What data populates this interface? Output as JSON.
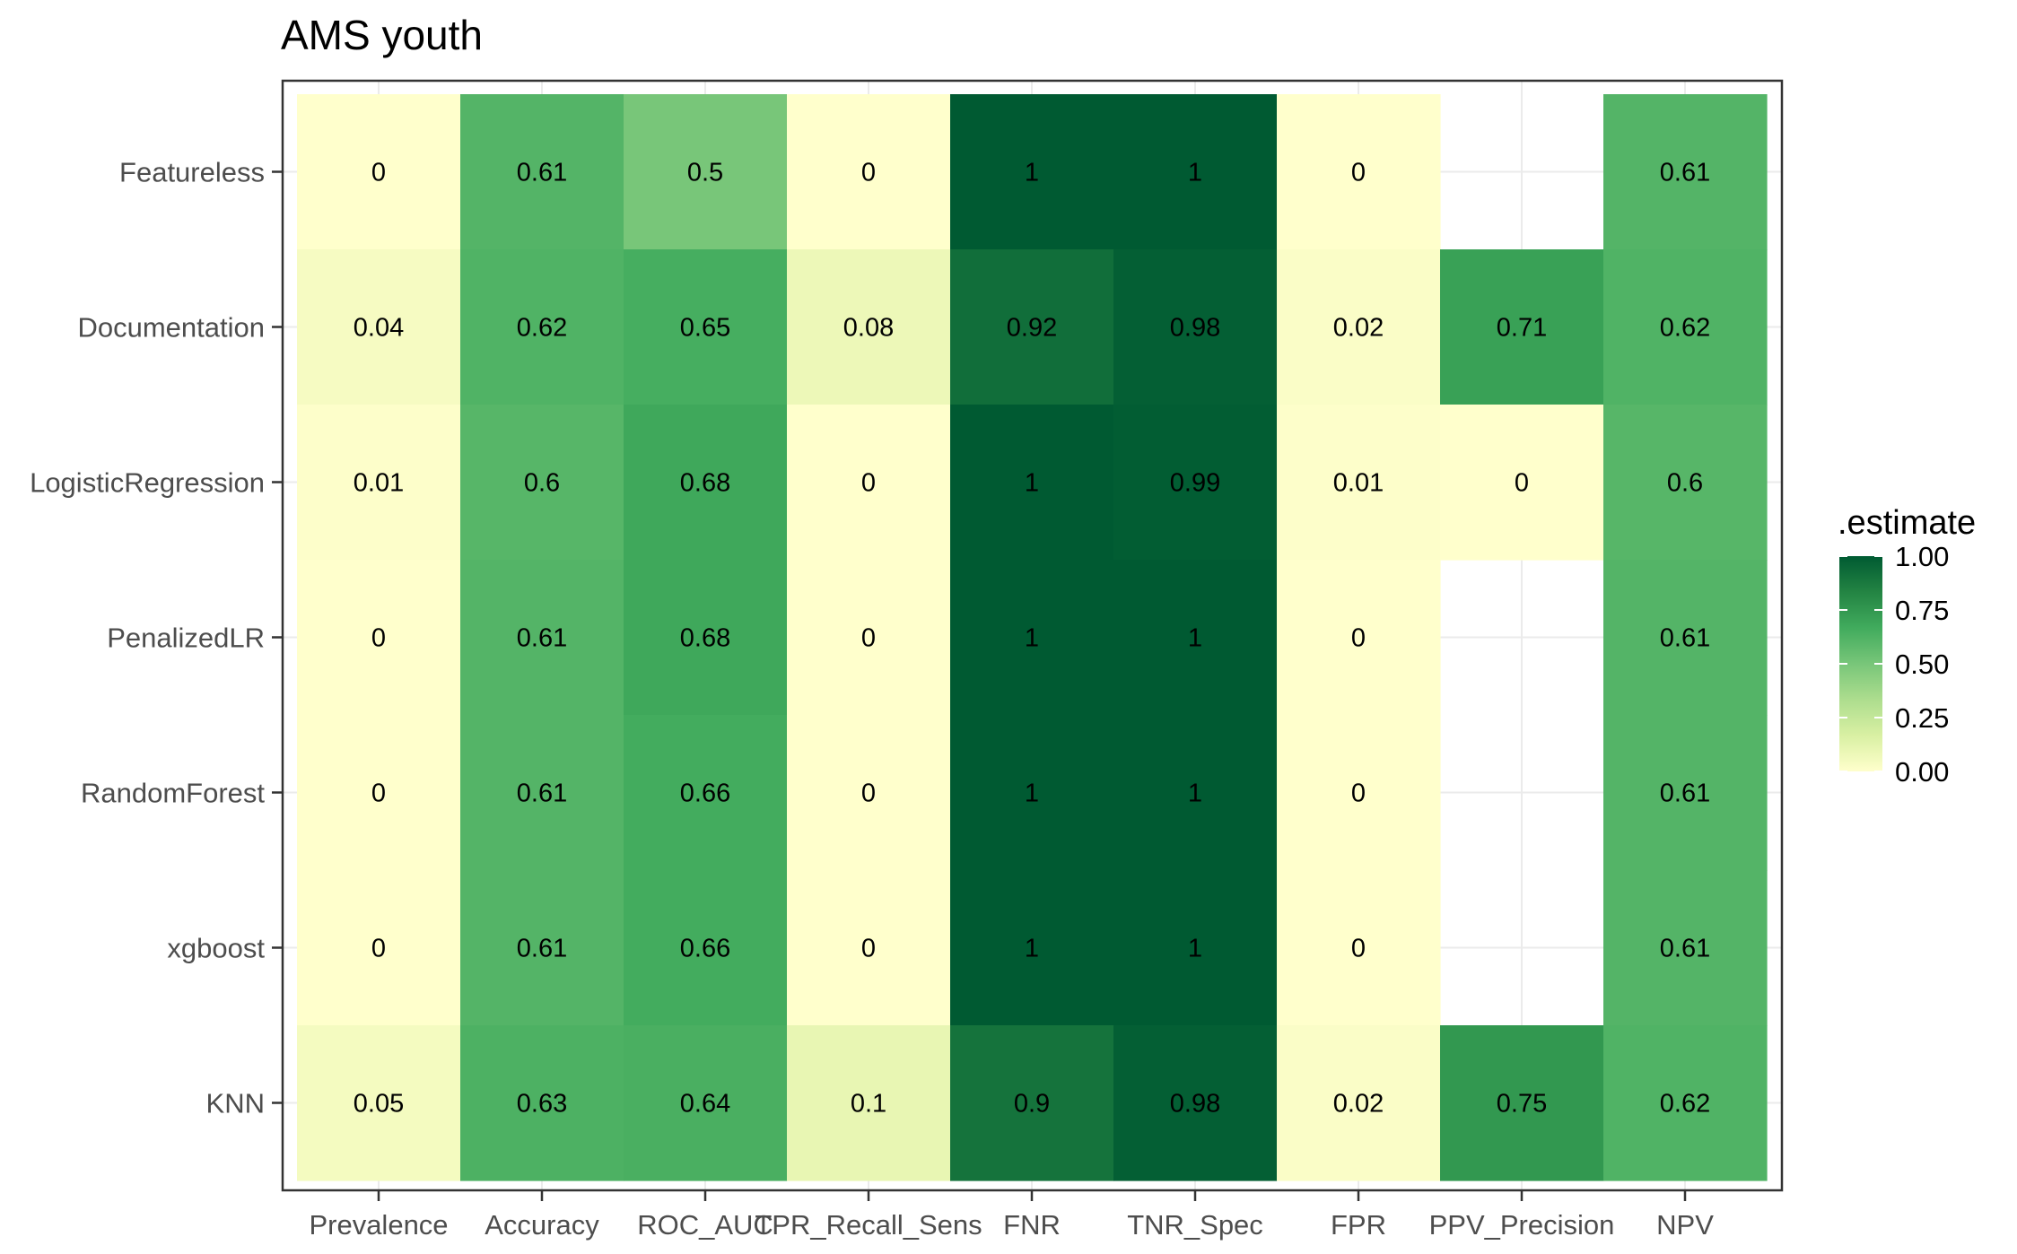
{
  "chart_data": {
    "type": "heatmap",
    "title": "AMS youth",
    "xlabel": "",
    "ylabel": "",
    "x_categories": [
      "Prevalence",
      "Accuracy",
      "ROC_AUC",
      "TPR_Recall_Sens",
      "FNR",
      "TNR_Spec",
      "FPR",
      "PPV_Precision",
      "NPV"
    ],
    "y_categories": [
      "Featureless",
      "Documentation",
      "LogisticRegression",
      "PenalizedLR",
      "RandomForest",
      "xgboost",
      "KNN"
    ],
    "values": [
      [
        0,
        0.61,
        0.5,
        0,
        1,
        1,
        0,
        null,
        0.61
      ],
      [
        0.04,
        0.62,
        0.65,
        0.08,
        0.92,
        0.98,
        0.02,
        0.71,
        0.62
      ],
      [
        0.01,
        0.6,
        0.68,
        0,
        1,
        0.99,
        0.01,
        0,
        0.6
      ],
      [
        0,
        0.61,
        0.68,
        0,
        1,
        1,
        0,
        null,
        0.61
      ],
      [
        0,
        0.61,
        0.66,
        0,
        1,
        1,
        0,
        null,
        0.61
      ],
      [
        0,
        0.61,
        0.66,
        0,
        1,
        1,
        0,
        null,
        0.61
      ],
      [
        0.05,
        0.63,
        0.64,
        0.1,
        0.9,
        0.98,
        0.02,
        0.75,
        0.62
      ]
    ],
    "legend": {
      "title": ".estimate",
      "ticks": [
        "1.00",
        "0.75",
        "0.50",
        "0.25",
        "0.00"
      ],
      "tick_values": [
        1,
        0.75,
        0.5,
        0.25,
        0
      ],
      "position": "right"
    },
    "color_scale": [
      "#ffffcc",
      "#d9f0a3",
      "#addd8e",
      "#78c679",
      "#41ab5d",
      "#238443",
      "#005a32"
    ],
    "range": [
      0,
      1
    ],
    "grid": true
  }
}
